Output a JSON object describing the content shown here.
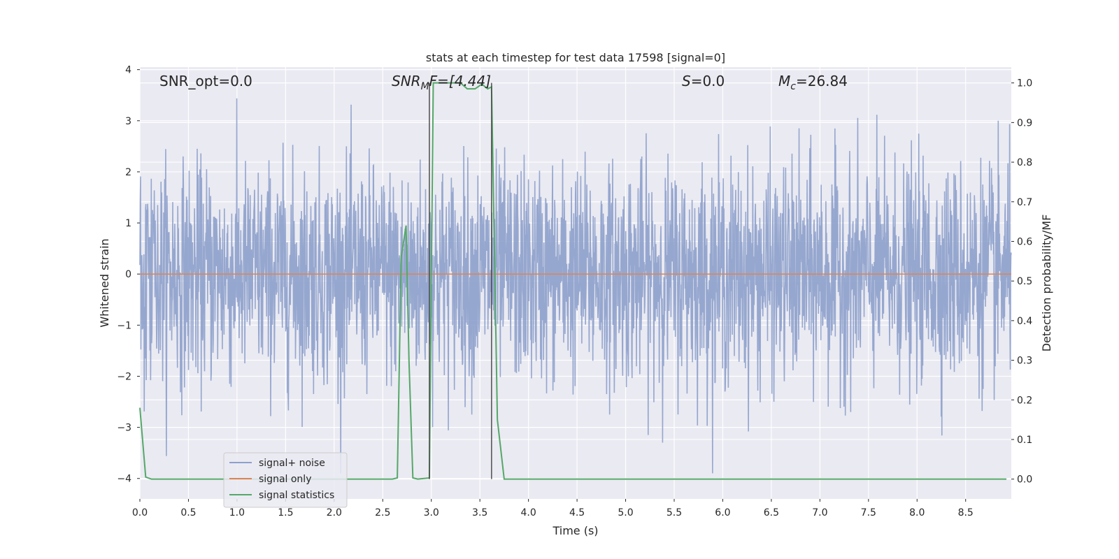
{
  "chart_data": {
    "type": "line",
    "title": "stats at each timestep for test data 17598 [signal=0]",
    "xlabel": "Time (s)",
    "ylabel": "Whitened strain",
    "y2label": "Detection probability/MF",
    "xlim": [
      0.0,
      8.97
    ],
    "ylim": [
      -4.4,
      4.05
    ],
    "y2lim": [
      -0.05,
      1.04
    ],
    "xticks": [
      0.0,
      0.5,
      1.0,
      1.5,
      2.0,
      2.5,
      3.0,
      3.5,
      4.0,
      4.5,
      5.0,
      5.5,
      6.0,
      6.5,
      7.0,
      7.5,
      8.0,
      8.5
    ],
    "xtick_labels": [
      "0.0",
      "0.5",
      "1.0",
      "1.5",
      "2.0",
      "2.5",
      "3.0",
      "3.5",
      "4.0",
      "4.5",
      "5.0",
      "5.5",
      "6.0",
      "6.5",
      "7.0",
      "7.5",
      "8.0",
      "8.5"
    ],
    "yticks": [
      -4,
      -3,
      -2,
      -1,
      0,
      1,
      2,
      3,
      4
    ],
    "ytick_labels": [
      "−4",
      "−3",
      "−2",
      "−1",
      "0",
      "1",
      "2",
      "3",
      "4"
    ],
    "y2ticks": [
      0.0,
      0.1,
      0.2,
      0.3,
      0.4,
      0.5,
      0.6,
      0.7,
      0.8,
      0.9,
      1.0
    ],
    "y2tick_labels": [
      "0.0",
      "0.1",
      "0.2",
      "0.3",
      "0.4",
      "0.5",
      "0.6",
      "0.7",
      "0.8",
      "0.9",
      "1.0"
    ],
    "grid": true,
    "legend_position": "lower-left",
    "annotations": {
      "snr_opt": "SNR_opt=0.0",
      "snr_mf_main": "SNR",
      "snr_mf_sub": "M",
      "snr_mf_rest": "F=[4.44]",
      "s_main": "S",
      "s_rest": "=0.0",
      "mc_main": "M",
      "mc_sub": "c",
      "mc_rest": "=26.84"
    },
    "vlines_x": [
      2.98,
      3.62
    ],
    "series": [
      {
        "name": "signal+ noise",
        "color": "#8da0cb",
        "kind": "noise",
        "x_range": [
          0.0,
          8.97
        ],
        "amplitude_typical": 1.3,
        "max_value": 3.66,
        "min_value": -3.9
      },
      {
        "name": "signal only",
        "color": "#dd8452",
        "x": [
          0.0,
          8.97
        ],
        "y": [
          0.0,
          0.0
        ]
      },
      {
        "name": "signal statistics",
        "color": "#55a868",
        "axis": "right",
        "x": [
          0.0,
          0.06,
          0.12,
          2.6,
          2.65,
          2.69,
          2.74,
          2.77,
          2.81,
          2.86,
          2.98,
          3.02,
          3.06,
          3.1,
          3.3,
          3.37,
          3.45,
          3.52,
          3.58,
          3.62,
          3.68,
          3.75,
          8.92
        ],
        "y": [
          0.18,
          0.005,
          0.0,
          0.0,
          0.003,
          0.56,
          0.64,
          0.3,
          0.003,
          0.0,
          0.003,
          1.0,
          1.0,
          1.0,
          1.0,
          0.985,
          0.985,
          0.997,
          0.985,
          0.99,
          0.15,
          0.0,
          0.0
        ]
      }
    ]
  }
}
